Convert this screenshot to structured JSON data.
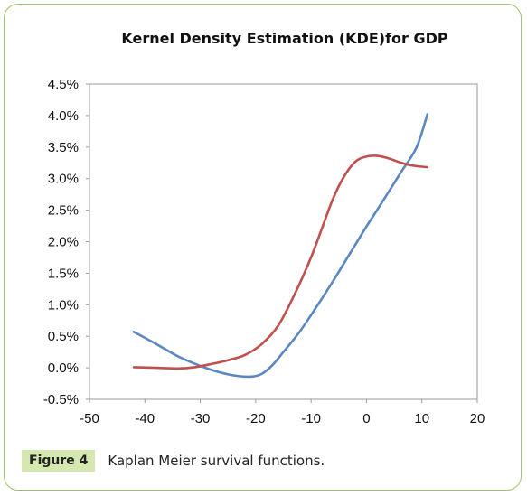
{
  "chart_data": {
    "type": "line",
    "title": "Kernel Density  Estimation (KDE)for GDP",
    "xlabel": "",
    "ylabel": "",
    "xlim": [
      -50,
      20
    ],
    "ylim": [
      -0.005,
      0.045
    ],
    "xticks": [
      "-50",
      "-40",
      "-30",
      "-20",
      "-10",
      "0",
      "10",
      "20"
    ],
    "yticks": [
      "-0.5%",
      "0.0%",
      "0.5%",
      "1.0%",
      "1.5%",
      "2.0%",
      "2.5%",
      "3.0%",
      "3.5%",
      "4.0%",
      "4.5%"
    ],
    "grid": false,
    "legend": "none",
    "series": [
      {
        "color": "#5b87c3",
        "x": [
          -42,
          -38,
          -34,
          -30,
          -27,
          -24,
          -21,
          -19,
          -17,
          -15,
          -12,
          -9,
          -6,
          -3,
          0,
          3,
          6,
          9,
          11
        ],
        "y": [
          0.0057,
          0.0038,
          0.0018,
          0.0003,
          -0.0006,
          -0.0012,
          -0.0014,
          -0.001,
          0.0004,
          0.0025,
          0.0058,
          0.0097,
          0.0138,
          0.0181,
          0.0224,
          0.0265,
          0.0307,
          0.0349,
          0.0402
        ]
      },
      {
        "color": "#c0504d",
        "x": [
          -42,
          -38,
          -34,
          -31,
          -28,
          -25,
          -22,
          -19,
          -16,
          -13,
          -10,
          -8,
          -6,
          -4,
          -2,
          0,
          2,
          4,
          6,
          8,
          11
        ],
        "y": [
          0.0001,
          0.0,
          -0.0001,
          0.0001,
          0.0006,
          0.0012,
          0.002,
          0.0037,
          0.0066,
          0.0116,
          0.0175,
          0.0222,
          0.0269,
          0.0304,
          0.0327,
          0.0335,
          0.0336,
          0.0332,
          0.0326,
          0.0321,
          0.0318
        ]
      }
    ]
  },
  "caption": {
    "label": "Figure 4",
    "text": "Kaplan Meier survival functions."
  }
}
